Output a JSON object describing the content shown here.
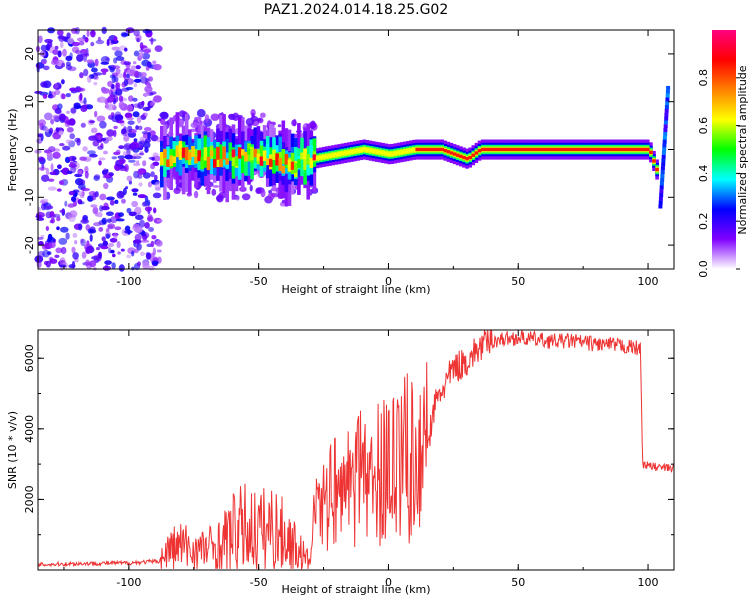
{
  "chart_data": [
    {
      "type": "heatmap",
      "title": "PAZ1.2024.014.18.25.G02",
      "xlabel": "Height of straight line (km)",
      "ylabel": "Frequency (Hz)",
      "xlim": [
        -135,
        110
      ],
      "ylim": [
        -25,
        25
      ],
      "xticks": [
        "-100",
        "-50",
        "0",
        "50",
        "100"
      ],
      "yticks": [
        "20",
        "10",
        "0",
        "-10",
        "-20"
      ],
      "colorbar": {
        "label": "Normalized spectral amplitude",
        "range": [
          0,
          1
        ],
        "ticks": [
          "0.0",
          "0.2",
          "0.4",
          "0.6",
          "0.8"
        ],
        "colors": [
          "#ffffff",
          "#8000ff",
          "#0000ff",
          "#00ffff",
          "#00ff00",
          "#ffff00",
          "#ff8000",
          "#ff0000",
          "#ff0080"
        ]
      },
      "ridge": {
        "x": [
          -90,
          -80,
          -70,
          -60,
          -50,
          -40,
          -30,
          -20,
          -10,
          0,
          10,
          20,
          30,
          35,
          40,
          50,
          60,
          70,
          80,
          90,
          100,
          104
        ],
        "y": [
          -2,
          -1,
          -1.5,
          -2,
          -1,
          -3,
          -2,
          -1,
          0,
          -1,
          0,
          0,
          -2,
          0,
          0,
          0,
          0,
          0,
          0,
          0,
          0,
          -6
        ]
      }
    },
    {
      "type": "line",
      "title": "",
      "xlabel": "Height of straight line (km)",
      "ylabel": "SNR (10 * v/v)",
      "xlim": [
        -135,
        110
      ],
      "ylim": [
        0,
        6800
      ],
      "xticks": [
        "-100",
        "-50",
        "0",
        "50",
        "100"
      ],
      "yticks": [
        "6000",
        "4000",
        "2000"
      ],
      "series": [
        {
          "color": "#ee3333",
          "x": [
            -135,
            -120,
            -100,
            -88,
            -85,
            -80,
            -75,
            -70,
            -65,
            -60,
            -55,
            -50,
            -45,
            -40,
            -35,
            -30,
            -28,
            -25,
            -20,
            -15,
            -10,
            -5,
            0,
            5,
            10,
            15,
            18,
            20,
            25,
            30,
            35,
            40,
            45,
            50,
            55,
            60,
            65,
            70,
            75,
            80,
            85,
            90,
            95,
            97,
            98,
            100,
            105,
            110
          ],
          "y": [
            150,
            180,
            200,
            250,
            550,
            700,
            550,
            600,
            700,
            1050,
            1200,
            1100,
            1200,
            950,
            600,
            200,
            1800,
            2100,
            2300,
            2250,
            2700,
            2600,
            3100,
            3300,
            3000,
            3500,
            4700,
            5000,
            5700,
            5900,
            6300,
            6500,
            6550,
            6580,
            6550,
            6500,
            6480,
            6500,
            6450,
            6400,
            6380,
            6350,
            6300,
            6250,
            3000,
            2950,
            2900,
            2880
          ]
        }
      ]
    }
  ]
}
